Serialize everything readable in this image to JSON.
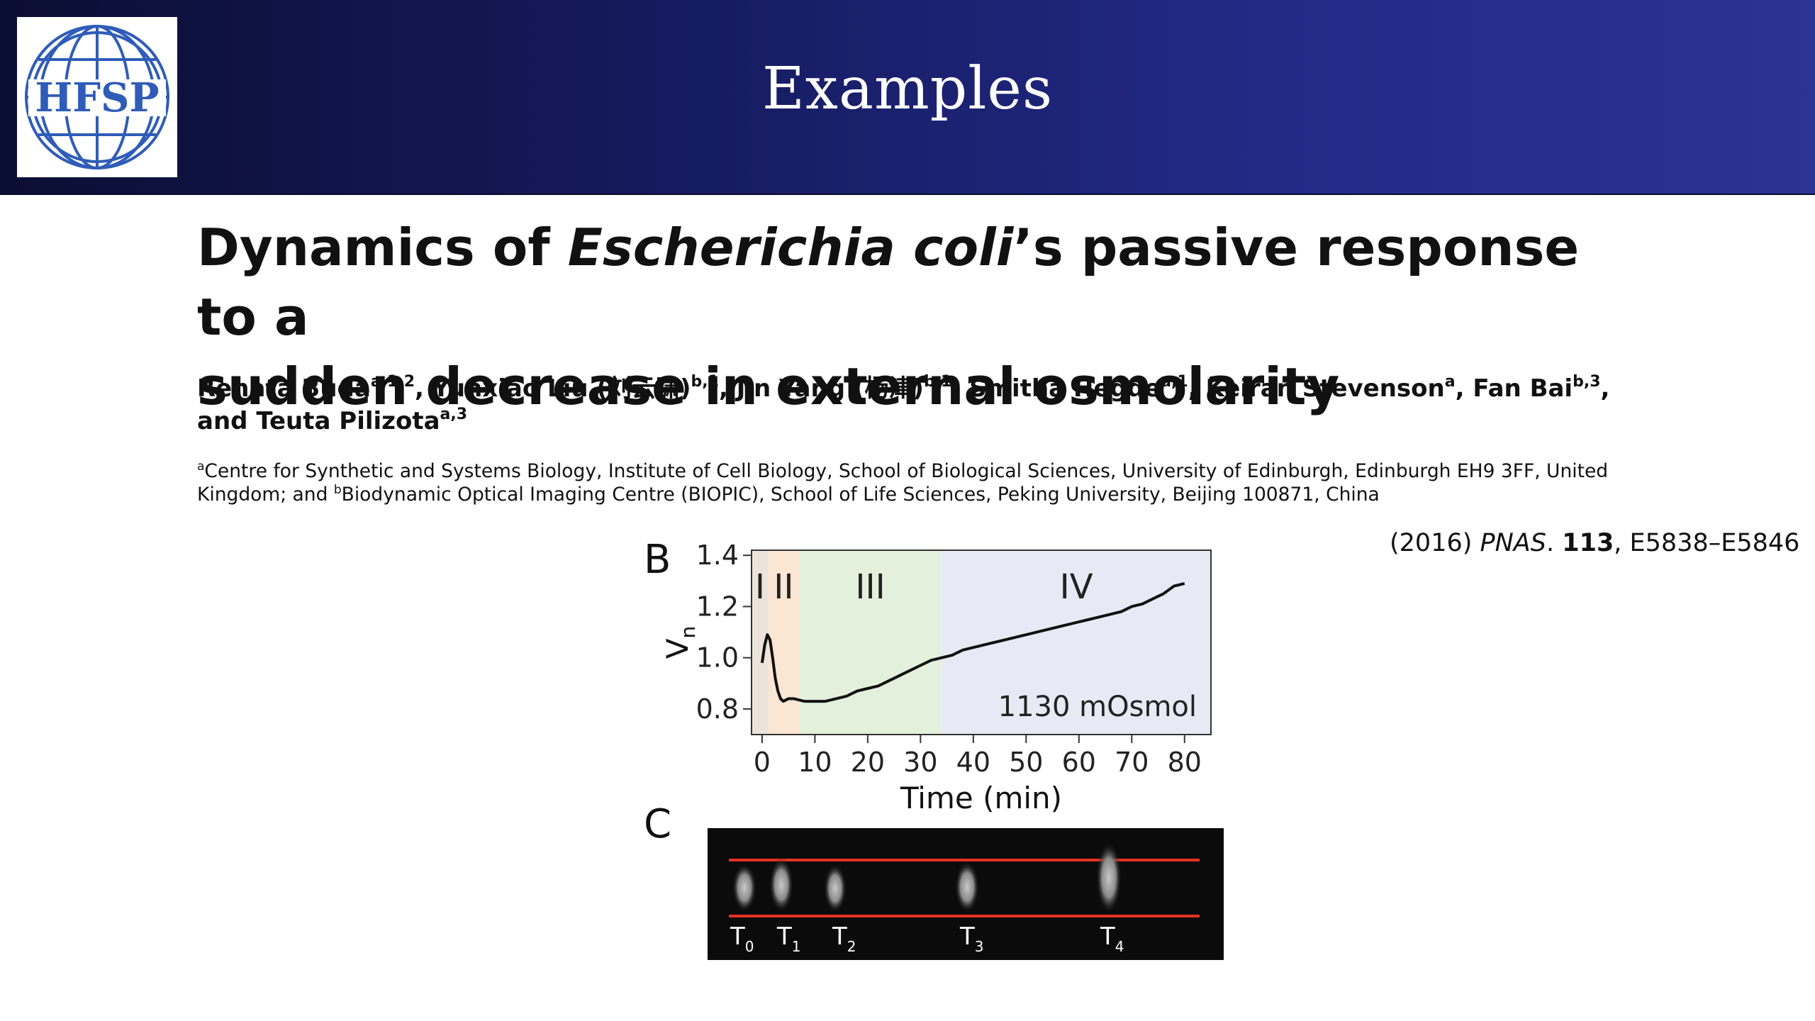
{
  "slide": {
    "header_title": "Examples",
    "logo_text": "HFSP",
    "colors": {
      "header_start": "#0b0e33",
      "header_end": "#2b3393",
      "logo_blue": "#2f5cb8",
      "red_line": "#e53222"
    }
  },
  "paper": {
    "title_line1_pre": "Dynamics of ",
    "title_line1_italic": "Escherichia coli",
    "title_line1_post": "’s passive response to a",
    "title_line2": "sudden decrease in external osmolarity",
    "authors": [
      {
        "name": "Renata Buda",
        "sup": "a,1,2",
        "sep": ", "
      },
      {
        "name": "Yunxiao Liu (刘云啸)",
        "sup": "b,1",
        "sep": ", "
      },
      {
        "name": "Jin Yang (杨津)",
        "sup": "b,1",
        "sep": ", "
      },
      {
        "name": "Smitha Hegde",
        "sup": "a,1",
        "sep": ", "
      },
      {
        "name": "Keiran Stevenson",
        "sup": "a",
        "sep": ", "
      },
      {
        "name": "Fan Bai",
        "sup": "b,3",
        "sep": ","
      },
      {
        "name": "and Teuta Pilizota",
        "sup": "a,3",
        "sep": ""
      }
    ],
    "affiliation_a_sup": "a",
    "affiliation_a": "Centre for Synthetic and Systems Biology, Institute of Cell Biology, School of Biological Sciences, University of Edinburgh, Edinburgh EH9 3FF, United Kingdom; and ",
    "affiliation_b_sup": "b",
    "affiliation_b": "Biodynamic Optical Imaging Centre (BIOPIC), School of Life Sciences, Peking University, Beijing 100871, China"
  },
  "citation": {
    "year": "(2016) ",
    "journal": "PNAS",
    "dot": ". ",
    "volume": "113",
    "pages": ", E5838–E5846"
  },
  "chart_data": {
    "type": "line",
    "panel_label": "B",
    "xlabel": "Time (min)",
    "ylabel": "V",
    "ylabel_sub": "n",
    "xlim": [
      -2,
      85
    ],
    "ylim": [
      0.7,
      1.42
    ],
    "xticks": [
      0,
      10,
      20,
      30,
      40,
      50,
      60,
      70,
      80
    ],
    "yticks": [
      0.8,
      1.0,
      1.2,
      1.4
    ],
    "ytick_labels": [
      "0.8",
      "1.0",
      "1.2",
      "1.4"
    ],
    "annotation": "1130 mOsmol",
    "grid": false,
    "phases": [
      {
        "label": "I",
        "x0": -2,
        "x1": 1.2,
        "color": "#ece3da"
      },
      {
        "label": "II",
        "x0": 1.2,
        "x1": 7,
        "color": "#fbe6d3"
      },
      {
        "label": "III",
        "x0": 7,
        "x1": 34,
        "color": "#e3f1dc"
      },
      {
        "label": "IV",
        "x0": 34,
        "x1": 85,
        "color": "#e9e9f6"
      }
    ],
    "series": [
      {
        "x": [
          0,
          0.5,
          1,
          1.5,
          2,
          2.5,
          3,
          3.5,
          4,
          5,
          6,
          8,
          10,
          12,
          14,
          16,
          18,
          20,
          22,
          24,
          26,
          28,
          30,
          32,
          34,
          36,
          38,
          40,
          42,
          44,
          46,
          48,
          50,
          52,
          54,
          56,
          58,
          60,
          62,
          64,
          66,
          68,
          70,
          72,
          74,
          76,
          78,
          80
        ],
        "y": [
          0.98,
          1.05,
          1.09,
          1.07,
          1.0,
          0.92,
          0.87,
          0.84,
          0.83,
          0.84,
          0.84,
          0.83,
          0.83,
          0.83,
          0.84,
          0.85,
          0.87,
          0.88,
          0.89,
          0.91,
          0.93,
          0.95,
          0.97,
          0.99,
          1.0,
          1.01,
          1.03,
          1.04,
          1.05,
          1.06,
          1.07,
          1.08,
          1.09,
          1.1,
          1.11,
          1.12,
          1.13,
          1.14,
          1.15,
          1.16,
          1.17,
          1.18,
          1.2,
          1.21,
          1.23,
          1.25,
          1.28,
          1.29
        ]
      }
    ]
  },
  "panel_c": {
    "label": "C",
    "time_labels": [
      {
        "t": "T",
        "sub": "0"
      },
      {
        "t": "T",
        "sub": "1"
      },
      {
        "t": "T",
        "sub": "2"
      },
      {
        "t": "T",
        "sub": "3"
      },
      {
        "t": "T",
        "sub": "4"
      }
    ]
  }
}
